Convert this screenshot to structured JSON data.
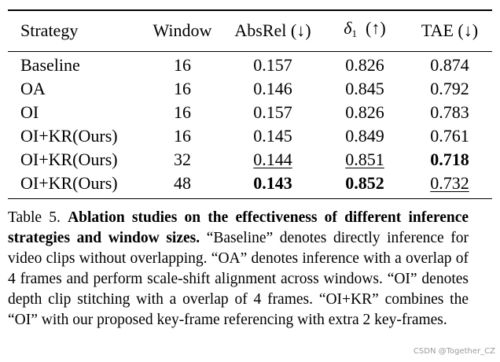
{
  "table": {
    "headers": {
      "strategy": "Strategy",
      "window": "Window",
      "absrel": "AbsRel (↓)",
      "delta_symbol": "δ",
      "delta_sub": "1",
      "delta_arrow": "(↑)",
      "tae": "TAE (↓)"
    },
    "rows": [
      {
        "strategy": "Baseline",
        "window": "16",
        "absrel": "0.157",
        "delta1": "0.826",
        "tae": "0.874"
      },
      {
        "strategy": "OA",
        "window": "16",
        "absrel": "0.146",
        "delta1": "0.845",
        "tae": "0.792"
      },
      {
        "strategy": "OI",
        "window": "16",
        "absrel": "0.157",
        "delta1": "0.826",
        "tae": "0.783"
      },
      {
        "strategy": "OI+KR(Ours)",
        "window": "16",
        "absrel": "0.145",
        "delta1": "0.849",
        "tae": "0.761"
      },
      {
        "strategy": "OI+KR(Ours)",
        "window": "32",
        "absrel": "0.144",
        "delta1": "0.851",
        "tae": "0.718"
      },
      {
        "strategy": "OI+KR(Ours)",
        "window": "48",
        "absrel": "0.143",
        "delta1": "0.852",
        "tae": "0.732"
      }
    ]
  },
  "caption": {
    "label": "Table 5.",
    "bold_text": "Ablation studies on the effectiveness of different inference strategies and window sizes.",
    "text": "“Baseline” denotes directly inference for video clips without overlapping. “OA” denotes inference with a overlap of 4 frames and perform scale-shift alignment across windows. “OI” denotes depth clip stitching with a overlap of 4 frames. “OI+KR” combines the “OI” with our proposed key-frame referencing with extra 2 key-frames."
  },
  "watermark": "CSDN @Together_CZ"
}
